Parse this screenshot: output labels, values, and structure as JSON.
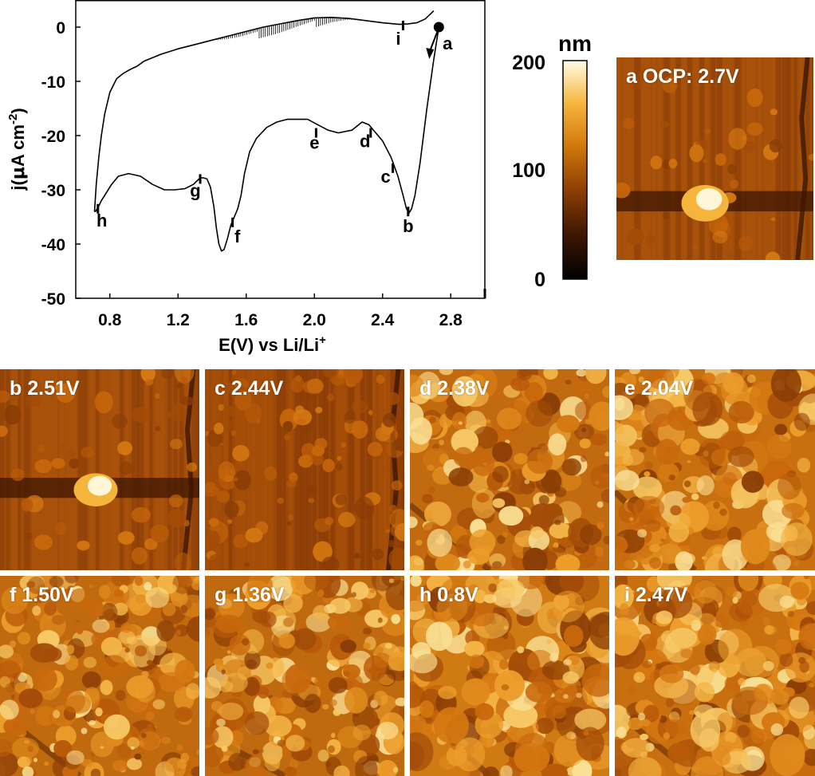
{
  "chart_data": {
    "type": "line",
    "xlabel": "E(V) vs Li/Li",
    "xlabel_sup": "+",
    "ylabel_prefix": "j(",
    "ylabel_mu": "μ",
    "ylabel_mid": "A cm",
    "ylabel_sup": "-2",
    "ylabel_suffix": ")",
    "xlim": [
      0.6,
      3.0
    ],
    "ylim": [
      -50,
      5
    ],
    "xticks": [
      "0.8",
      "1.2",
      "1.6",
      "2.0",
      "2.4",
      "2.8"
    ],
    "xtick_values": [
      0.8,
      1.2,
      1.6,
      2.0,
      2.4,
      2.8
    ],
    "yticks": [
      "0",
      "-10",
      "-20",
      "-30",
      "-40",
      "-50"
    ],
    "ytick_values": [
      0,
      -10,
      -20,
      -30,
      -40,
      -50
    ],
    "series": [
      {
        "x": [
          2.73,
          2.7,
          2.66,
          2.62,
          2.59,
          2.57,
          2.555,
          2.54,
          2.52,
          2.49,
          2.45,
          2.4,
          2.36,
          2.32,
          2.28,
          2.22,
          2.14,
          2.08,
          2.02,
          1.96,
          1.9,
          1.84,
          1.78,
          1.72,
          1.66,
          1.62,
          1.59,
          1.57,
          1.55,
          1.53,
          1.51,
          1.49,
          1.47,
          1.455,
          1.44,
          1.425,
          1.41,
          1.39,
          1.37,
          1.35,
          1.33,
          1.29,
          1.24,
          1.18,
          1.12,
          1.05,
          0.98,
          0.91,
          0.85,
          0.81,
          0.78,
          0.75,
          0.73,
          0.715,
          0.71
        ],
        "y": [
          0,
          -6,
          -15,
          -25,
          -31,
          -33.5,
          -34.3,
          -33.5,
          -31,
          -27.5,
          -24,
          -21,
          -19.5,
          -18,
          -17.5,
          -19,
          -19.5,
          -19,
          -18,
          -17,
          -17,
          -17,
          -17.5,
          -18.5,
          -20.5,
          -23,
          -27,
          -31,
          -33.5,
          -35,
          -36.5,
          -39,
          -41,
          -41.3,
          -40,
          -37,
          -33,
          -29.5,
          -28,
          -27.8,
          -27.8,
          -29,
          -29.8,
          -30,
          -30,
          -29,
          -27.5,
          -27,
          -27.5,
          -29,
          -30.5,
          -32,
          -33.3,
          -34,
          -34
        ]
      },
      {
        "x": [
          0.71,
          0.72,
          0.735,
          0.75,
          0.77,
          0.8,
          0.84,
          0.88,
          0.92,
          0.96,
          1.0,
          1.1,
          1.2,
          1.3,
          1.4,
          1.5,
          1.6,
          1.7,
          1.8,
          1.9,
          2.0,
          2.1,
          2.2,
          2.3,
          2.4,
          2.5,
          2.55,
          2.6,
          2.65,
          2.7
        ],
        "y": [
          -34,
          -29,
          -24,
          -20,
          -16,
          -12,
          -9.5,
          -8.5,
          -7.8,
          -7.2,
          -6.3,
          -5,
          -4,
          -3.2,
          -2.4,
          -1.6,
          -0.8,
          0,
          0.6,
          1.2,
          1.7,
          1.8,
          1.6,
          1.2,
          0.8,
          0.5,
          0.6,
          0.8,
          1.5,
          3
        ]
      }
    ],
    "start_marker": {
      "x": 2.73,
      "y": 0,
      "label": "a"
    },
    "annotations": [
      {
        "label": "a",
        "x": 2.73,
        "y": 0
      },
      {
        "label": "b",
        "x": 2.55,
        "y": -34
      },
      {
        "label": "c",
        "x": 2.46,
        "y": -26
      },
      {
        "label": "d",
        "x": 2.33,
        "y": -19.5
      },
      {
        "label": "e",
        "x": 2.01,
        "y": -19.5
      },
      {
        "label": "f",
        "x": 1.52,
        "y": -36
      },
      {
        "label": "g",
        "x": 1.33,
        "y": -28
      },
      {
        "label": "h",
        "x": 0.73,
        "y": -33.5
      },
      {
        "label": "i",
        "x": 2.52,
        "y": 0.3
      }
    ]
  },
  "colorbar": {
    "unit": "nm",
    "ticks": [
      "200",
      "100",
      "0"
    ],
    "tick_values": [
      200,
      100,
      0
    ],
    "range": [
      0,
      200
    ]
  },
  "afm_images": [
    {
      "id": "a",
      "label": "a OCP: 2.7V"
    },
    {
      "id": "b",
      "label": "b 2.51V"
    },
    {
      "id": "c",
      "label": "c 2.44V"
    },
    {
      "id": "d",
      "label": "d 2.38V"
    },
    {
      "id": "e",
      "label": "e 2.04V"
    },
    {
      "id": "f",
      "label": "f 1.50V"
    },
    {
      "id": "g",
      "label": "g 1.36V"
    },
    {
      "id": "h",
      "label": "h 0.8V"
    },
    {
      "id": "i",
      "label": "i 2.47V"
    }
  ]
}
